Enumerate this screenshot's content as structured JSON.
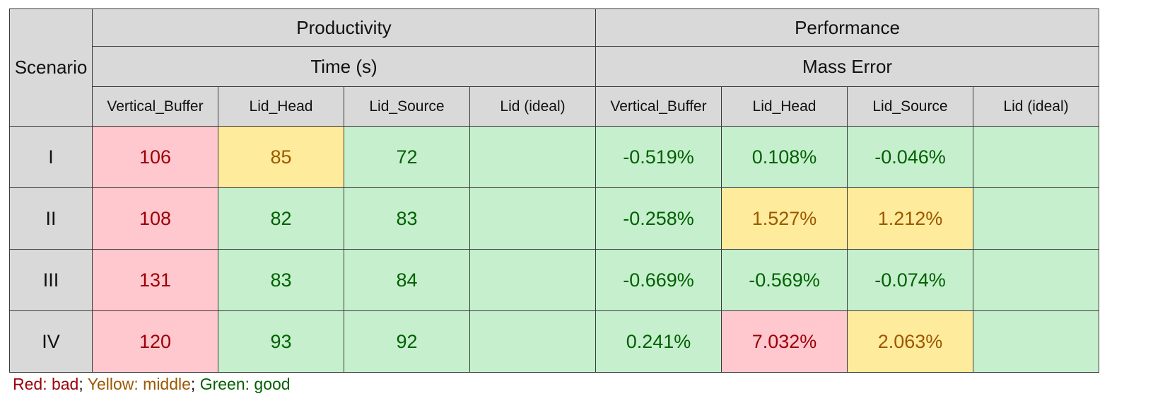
{
  "header": {
    "scenario": "Scenario",
    "productivity": "Productivity",
    "performance": "Performance",
    "time": "Time (s)",
    "mass_error": "Mass Error",
    "columns": [
      "Vertical_Buffer",
      "Lid_Head",
      "Lid_Source",
      "Lid (ideal)"
    ]
  },
  "rows": [
    {
      "label": "I",
      "time": [
        "106",
        "85",
        "72",
        ""
      ],
      "mass": [
        "-0.519%",
        "0.108%",
        "-0.046%",
        ""
      ]
    },
    {
      "label": "II",
      "time": [
        "108",
        "82",
        "83",
        ""
      ],
      "mass": [
        "-0.258%",
        "1.527%",
        "1.212%",
        ""
      ]
    },
    {
      "label": "III",
      "time": [
        "131",
        "83",
        "84",
        ""
      ],
      "mass": [
        "-0.669%",
        "-0.569%",
        "-0.074%",
        ""
      ]
    },
    {
      "label": "IV",
      "time": [
        "120",
        "93",
        "92",
        ""
      ],
      "mass": [
        "0.241%",
        "7.032%",
        "2.063%",
        ""
      ]
    }
  ],
  "legend": {
    "red": "Red: bad",
    "yellow": "Yellow: middle",
    "green": "Green: good",
    "separator": ";"
  },
  "colors": {
    "header_bg": "#d9d9d9",
    "bad_bg": "#ffc7ce",
    "bad_text": "#9c0006",
    "middle_bg": "#ffeb9c",
    "middle_text": "#9c5700",
    "good_bg": "#c6efce",
    "good_text": "#006100"
  }
}
